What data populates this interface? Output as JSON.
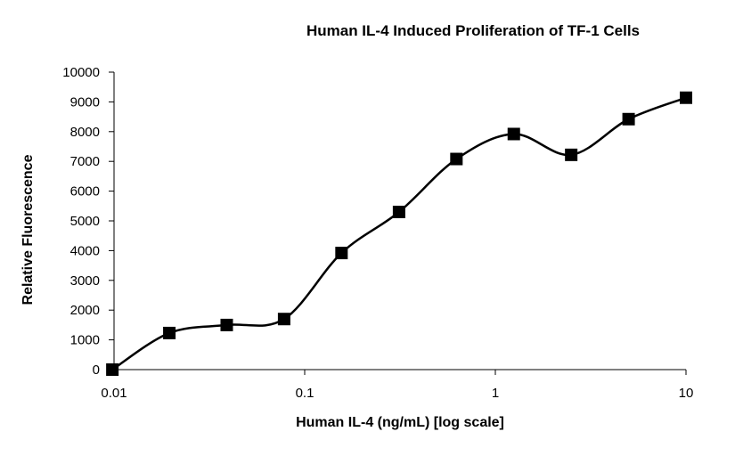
{
  "chart_data": {
    "type": "line",
    "title": "Human IL-4 Induced Proliferation of TF-1 Cells",
    "xlabel": "Human IL-4 (ng/mL) [log scale]",
    "ylabel": "Relative  Fluorescence",
    "x_scale": "log",
    "xlim": [
      0.01,
      10
    ],
    "ylim": [
      0,
      10000
    ],
    "x_ticks": [
      "0.01",
      "0.1",
      "1",
      "10"
    ],
    "y_ticks": [
      "0",
      "1000",
      "2000",
      "3000",
      "4000",
      "5000",
      "6000",
      "7000",
      "8000",
      "9000",
      "10000"
    ],
    "grid": false,
    "legend": "none",
    "marker": "square",
    "line_style": "smooth",
    "series": [
      {
        "color": "#000000",
        "x": [
          0.0098,
          0.0195,
          0.039,
          0.078,
          0.156,
          0.3125,
          0.625,
          1.25,
          2.5,
          5,
          10
        ],
        "y": [
          0,
          1230,
          1500,
          1700,
          3920,
          5300,
          7080,
          7920,
          7220,
          8420,
          9140
        ]
      }
    ]
  }
}
